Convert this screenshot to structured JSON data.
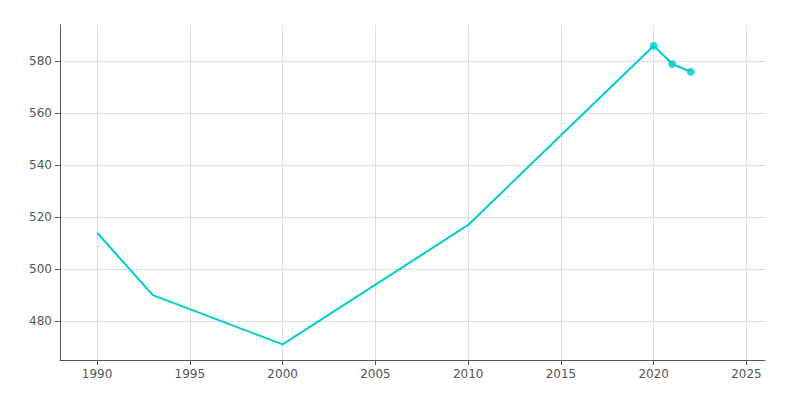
{
  "chart_data": {
    "type": "line",
    "x": [
      1990,
      1993,
      2000,
      2010,
      2020,
      2021,
      2022
    ],
    "series": [
      {
        "type": "line",
        "color": "#00CCCC",
        "values": [
          514,
          490,
          471,
          517,
          586,
          579,
          576
        ]
      },
      {
        "type": "scatter",
        "color": "#00CCCC",
        "marker": "circle",
        "x": [
          2020,
          2021,
          2022
        ],
        "values": [
          586,
          579,
          576
        ]
      }
    ],
    "xlim": [
      1988,
      2026
    ],
    "xticks": [
      1990,
      1995,
      2000,
      2005,
      2010,
      2015,
      2020,
      2025
    ],
    "ylim": [
      465,
      594
    ],
    "yticks": [
      480,
      500,
      520,
      540,
      560,
      580
    ],
    "grid": true
  }
}
